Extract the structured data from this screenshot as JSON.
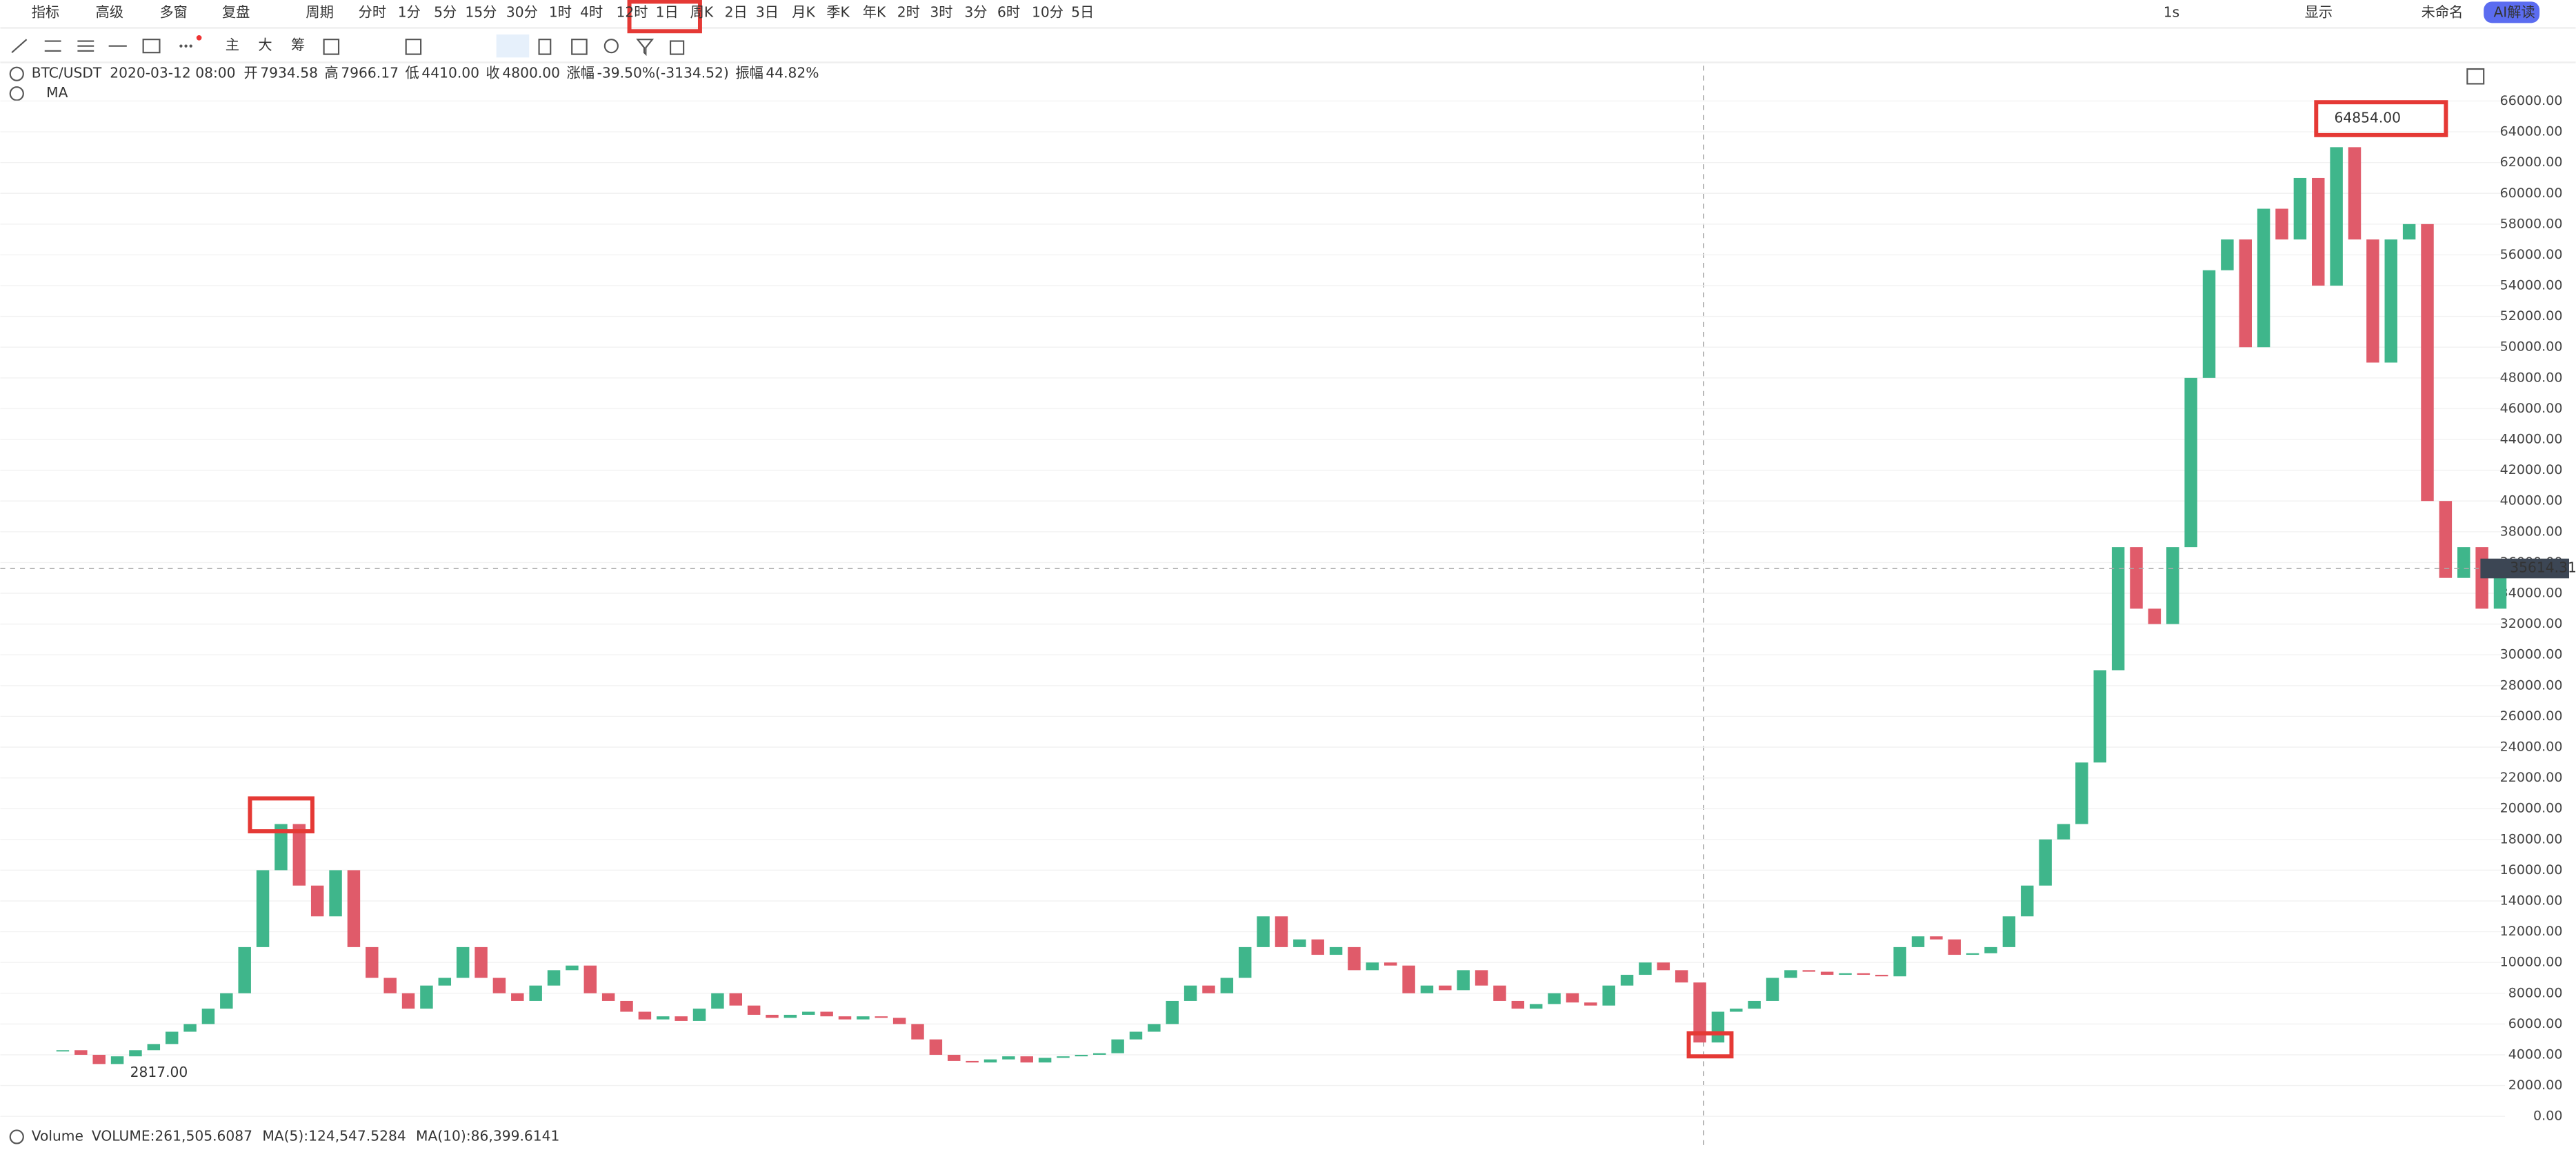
{
  "toolbar": {
    "items": [
      "指标",
      "高级",
      "多窗",
      "复盘",
      "周期",
      "分时",
      "1分",
      "5分",
      "15分",
      "30分",
      "1时",
      "4时",
      "12时",
      "1日",
      "周K",
      "2日",
      "3日",
      "月K",
      "季K",
      "年K",
      "2时",
      "3时",
      "3分",
      "6时",
      "10分",
      "5日"
    ],
    "right": [
      "1s",
      "显示",
      "未命名",
      "AI解读"
    ]
  },
  "drawing_tools": [
    "主",
    "大",
    "筹"
  ],
  "chart_data": {
    "type": "candlestick",
    "symbol": "BTC/USDT",
    "date": "2020-03-12 08:00",
    "info": [
      {
        "label": "开",
        "value": "7934.58"
      },
      {
        "label": "高",
        "value": "7966.17"
      },
      {
        "label": "低",
        "value": "4410.00"
      },
      {
        "label": "收",
        "value": "4800.00"
      },
      {
        "label": "涨幅",
        "value": "-39.50%(-3134.52)"
      },
      {
        "label": "振幅",
        "value": "44.82%"
      }
    ],
    "ma_label": "MA",
    "up_color": "#3fb68b",
    "down_color": "#e05b6a",
    "values": [
      4300,
      4000,
      3400,
      3900,
      4300,
      4700,
      5500,
      6000,
      7000,
      8000,
      11000,
      16000,
      19000,
      15000,
      13000,
      16000,
      11000,
      9000,
      8000,
      7000,
      8500,
      9000,
      11000,
      9000,
      8000,
      7500,
      8500,
      9500,
      9800,
      8000,
      7500,
      6800,
      6300,
      6500,
      6200,
      7000,
      8000,
      7200,
      6600,
      6400,
      6600,
      6800,
      6500,
      6300,
      6500,
      6400,
      6000,
      5000,
      4000,
      3600,
      3500,
      3700,
      3900,
      3500,
      3800,
      3900,
      4000,
      4100,
      5000,
      5500,
      6000,
      7500,
      8500,
      8000,
      9000,
      11000,
      13000,
      11000,
      11500,
      10500,
      11000,
      9500,
      10000,
      9800,
      8000,
      8500,
      8200,
      9500,
      8500,
      7500,
      7000,
      7300,
      8000,
      7400,
      7200,
      8500,
      9200,
      10000,
      9500,
      8700,
      4800,
      6800,
      7000,
      7500,
      9000,
      9500,
      9400,
      9200,
      9300,
      9200,
      9100,
      11000,
      11700,
      11500,
      10500,
      10600,
      11000,
      13000,
      15000,
      18000,
      19000,
      23000,
      29000,
      37000,
      33000,
      32000,
      37000,
      48000,
      55000,
      57000,
      50000,
      59000,
      57000,
      61000,
      54000,
      63000,
      57000,
      49000,
      57000,
      58000,
      40000,
      35000,
      37000,
      33000,
      35614.31
    ],
    "ylim": [
      0,
      66000
    ],
    "yticks": [
      {
        "value": 0,
        "label": "0.00"
      },
      {
        "value": 2000,
        "label": "2000.00"
      },
      {
        "value": 4000,
        "label": "4000.00"
      },
      {
        "value": 6000,
        "label": "6000.00"
      },
      {
        "value": 8000,
        "label": "8000.00"
      },
      {
        "value": 10000,
        "label": "10000.00"
      },
      {
        "value": 12000,
        "label": "12000.00"
      },
      {
        "value": 14000,
        "label": "14000.00"
      },
      {
        "value": 16000,
        "label": "16000.00"
      },
      {
        "value": 18000,
        "label": "18000.00"
      },
      {
        "value": 20000,
        "label": "20000.00"
      },
      {
        "value": 22000,
        "label": "22000.00"
      },
      {
        "value": 24000,
        "label": "24000.00"
      },
      {
        "value": 26000,
        "label": "26000.00"
      },
      {
        "value": 28000,
        "label": "28000.00"
      },
      {
        "value": 30000,
        "label": "30000.00"
      },
      {
        "value": 32000,
        "label": "32000.00"
      },
      {
        "value": 34000,
        "label": "34000.00"
      },
      {
        "value": 36000,
        "label": "36000.00"
      },
      {
        "value": 38000,
        "label": "38000.00"
      },
      {
        "value": 40000,
        "label": "40000.00"
      },
      {
        "value": 42000,
        "label": "42000.00"
      },
      {
        "value": 44000,
        "label": "44000.00"
      },
      {
        "value": 46000,
        "label": "46000.00"
      },
      {
        "value": 48000,
        "label": "48000.00"
      },
      {
        "value": 50000,
        "label": "50000.00"
      },
      {
        "value": 52000,
        "label": "52000.00"
      },
      {
        "value": 54000,
        "label": "54000.00"
      },
      {
        "value": 56000,
        "label": "56000.00"
      },
      {
        "value": 58000,
        "label": "58000.00"
      },
      {
        "value": 60000,
        "label": "60000.00"
      },
      {
        "value": 62000,
        "label": "62000.00"
      },
      {
        "value": 64000,
        "label": "64000.00"
      },
      {
        "value": 66000,
        "label": "66000.00"
      }
    ],
    "annotations": [
      {
        "value": 64854,
        "label": "64854.00"
      },
      {
        "value": 2817,
        "label": "2817.00"
      }
    ],
    "crosshair": 35614.31,
    "volume": {
      "title": "Volume",
      "items": [
        {
          "text": "VOLUME:261,505.6087",
          "color": "#888888"
        },
        {
          "text": "MA(5):124,547.5284",
          "color": "#3fb68b"
        },
        {
          "text": "MA(10):86,399.6141",
          "color": "#e0a020"
        }
      ]
    }
  }
}
